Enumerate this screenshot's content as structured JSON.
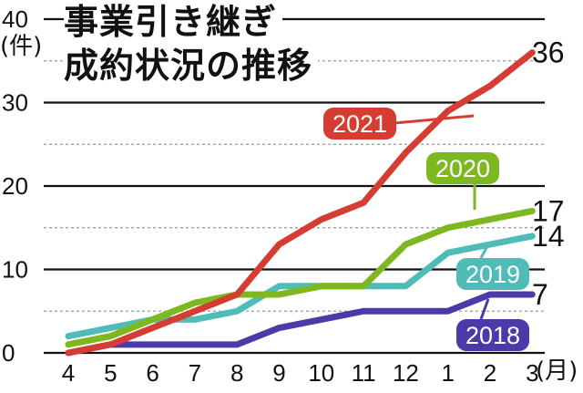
{
  "chart_data": {
    "type": "line",
    "title": "事業引き継ぎ成約状況の推移",
    "title_lines": [
      "事業引き継ぎ",
      "成約状況の推移"
    ],
    "y_unit": "(件)",
    "x_unit": "(月)",
    "categories": [
      "4",
      "5",
      "6",
      "7",
      "8",
      "9",
      "10",
      "11",
      "12",
      "1",
      "2",
      "3"
    ],
    "ylim": [
      0,
      40
    ],
    "yticks": [
      0,
      10,
      20,
      30,
      40
    ],
    "grid": true,
    "series": [
      {
        "name": "2018",
        "color": "#4b3aa8",
        "values": [
          0,
          1,
          1,
          1,
          1,
          3,
          4,
          5,
          5,
          5,
          7,
          7
        ],
        "end_label": "7"
      },
      {
        "name": "2019",
        "color": "#4fbcb8",
        "values": [
          2,
          3,
          4,
          4,
          5,
          8,
          8,
          8,
          8,
          12,
          13,
          14
        ],
        "end_label": "14"
      },
      {
        "name": "2020",
        "color": "#7db821",
        "values": [
          1,
          2,
          4,
          6,
          7,
          7,
          8,
          8,
          13,
          15,
          16,
          17
        ],
        "end_label": "17"
      },
      {
        "name": "2021",
        "color": "#d63d32",
        "values": [
          0,
          1,
          3,
          5,
          7,
          13,
          16,
          18,
          24,
          29,
          32,
          36
        ],
        "end_label": "36"
      }
    ]
  }
}
